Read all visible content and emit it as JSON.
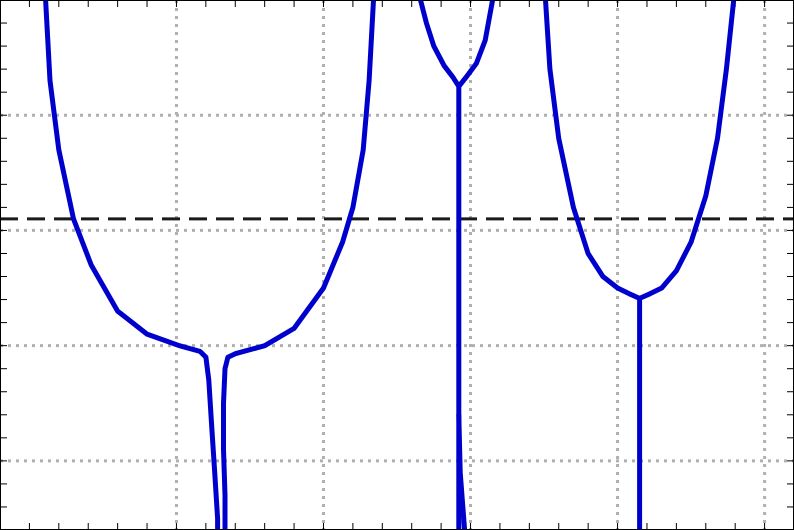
{
  "chart_data": {
    "type": "line",
    "title": "",
    "xlabel": "",
    "ylabel": "",
    "xlim": [
      0,
      5.4
    ],
    "ylim": [
      0,
      4.6
    ],
    "grid": true,
    "legend": "none",
    "x_gridlines": [
      1.2,
      2.2,
      3.2,
      4.2,
      5.2
    ],
    "y_gridlines": [
      0.6,
      1.6,
      2.6,
      3.6
    ],
    "reference_line": {
      "y": 2.7,
      "style": "dashed",
      "color": "#1a1a1a"
    },
    "series": [
      {
        "color": "#0000cc",
        "segments": [
          [
            [
              0.31,
              4.6
            ],
            [
              0.34,
              3.9
            ],
            [
              0.4,
              3.3
            ],
            [
              0.5,
              2.7
            ],
            [
              0.62,
              2.3
            ],
            [
              0.8,
              1.9
            ],
            [
              1.0,
              1.7
            ],
            [
              1.22,
              1.6
            ],
            [
              1.36,
              1.55
            ],
            [
              1.4,
              1.5
            ],
            [
              1.42,
              1.3
            ],
            [
              1.44,
              0.9
            ],
            [
              1.46,
              0.5
            ],
            [
              1.48,
              0.1
            ],
            [
              1.48,
              0.0
            ]
          ],
          [
            [
              1.53,
              0.0
            ],
            [
              1.53,
              0.3
            ],
            [
              1.52,
              0.7
            ],
            [
              1.52,
              1.1
            ],
            [
              1.53,
              1.4
            ],
            [
              1.55,
              1.5
            ],
            [
              1.6,
              1.53
            ],
            [
              1.8,
              1.6
            ],
            [
              2.0,
              1.75
            ],
            [
              2.2,
              2.1
            ],
            [
              2.33,
              2.5
            ],
            [
              2.4,
              2.8
            ],
            [
              2.47,
              3.3
            ],
            [
              2.51,
              3.9
            ],
            [
              2.54,
              4.6
            ]
          ],
          [
            [
              2.86,
              4.6
            ],
            [
              2.9,
              4.4
            ],
            [
              2.95,
              4.2
            ],
            [
              3.02,
              4.03
            ],
            [
              3.08,
              3.93
            ],
            [
              3.12,
              3.85
            ],
            [
              3.12,
              3.2
            ],
            [
              3.12,
              2.0
            ],
            [
              3.12,
              0.8
            ],
            [
              3.12,
              0.0
            ]
          ],
          [
            [
              3.16,
              0.0
            ],
            [
              3.13,
              0.5
            ],
            [
              3.12,
              1.0
            ]
          ],
          [
            [
              3.12,
              3.85
            ],
            [
              3.17,
              3.93
            ],
            [
              3.24,
              4.05
            ],
            [
              3.3,
              4.25
            ],
            [
              3.35,
              4.6
            ]
          ],
          [
            [
              3.71,
              4.6
            ],
            [
              3.74,
              4.0
            ],
            [
              3.8,
              3.4
            ],
            [
              3.9,
              2.8
            ],
            [
              4.0,
              2.4
            ],
            [
              4.1,
              2.2
            ],
            [
              4.2,
              2.1
            ],
            [
              4.28,
              2.05
            ],
            [
              4.35,
              2.01
            ]
          ],
          [
            [
              4.35,
              2.01
            ],
            [
              4.42,
              2.05
            ],
            [
              4.5,
              2.1
            ],
            [
              4.6,
              2.25
            ],
            [
              4.7,
              2.5
            ],
            [
              4.8,
              2.9
            ],
            [
              4.88,
              3.4
            ],
            [
              4.94,
              4.0
            ],
            [
              4.99,
              4.6
            ]
          ],
          [
            [
              4.35,
              2.01
            ],
            [
              4.35,
              1.4
            ],
            [
              4.35,
              0.8
            ],
            [
              4.35,
              0.0
            ]
          ]
        ]
      }
    ]
  }
}
